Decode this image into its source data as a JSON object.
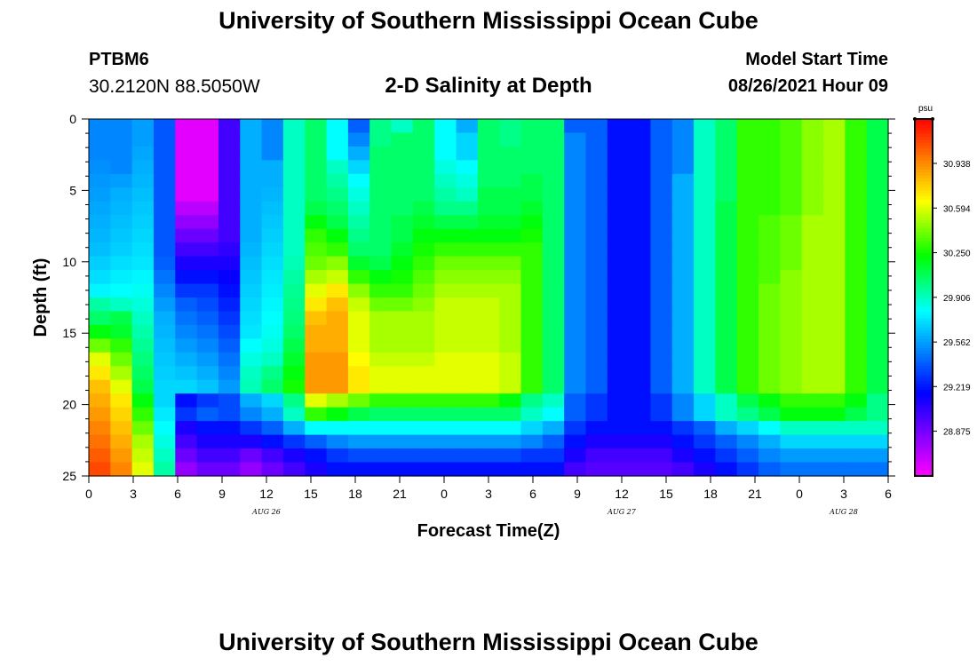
{
  "header": {
    "title_top": "University of Southern Mississippi Ocean Cube",
    "title_bottom": "University of Southern Mississippi Ocean Cube",
    "station_id": "PTBM6",
    "station_coords": "30.2120N  88.5050W",
    "plot_title": "2-D Salinity at Depth",
    "model_label": "Model Start Time",
    "model_time": "08/26/2021 Hour 09"
  },
  "colors": {
    "palette": [
      "#ff00ff",
      "#aa00ff",
      "#5500ff",
      "#0000ff",
      "#0055ff",
      "#00aaff",
      "#00ffff",
      "#00ff80",
      "#00ff00",
      "#80ff00",
      "#ffff00",
      "#ffaa00",
      "#ff5500",
      "#ff0000"
    ]
  },
  "chart_data": {
    "type": "heatmap",
    "title": "2-D Salinity at Depth",
    "xlabel": "Forecast Time(Z)",
    "ylabel": "Depth (ft)",
    "x_hours": [
      0,
      3,
      6,
      9,
      12,
      15,
      18,
      21,
      24,
      27,
      30,
      33,
      36,
      39,
      42,
      45,
      48,
      51,
      54
    ],
    "x_tick_labels": [
      "0",
      "3",
      "6",
      "9",
      "12",
      "15",
      "18",
      "21",
      "0",
      "3",
      "6",
      "9",
      "12",
      "15",
      "18",
      "21",
      "0",
      "3",
      "6"
    ],
    "xlim": [
      0,
      54
    ],
    "date_labels": [
      {
        "hour": 12,
        "text": "AUG 26"
      },
      {
        "hour": 36,
        "text": "AUG 27"
      },
      {
        "hour": 51,
        "text": "AUG 28"
      }
    ],
    "depths_ft": [
      0,
      5,
      10,
      15,
      20,
      25
    ],
    "y_tick_labels": [
      "0",
      "5",
      "10",
      "15",
      "20",
      "25"
    ],
    "ylim": [
      0,
      25
    ],
    "colorbar": {
      "unit": "psu",
      "ticks": [
        30.938,
        30.594,
        30.25,
        29.906,
        29.562,
        29.219,
        28.875
      ],
      "tick_labels": [
        "30.938",
        "30.594",
        "30.250",
        "29.906",
        "29.562",
        "29.219",
        "28.875"
      ],
      "range": [
        28.53,
        31.28
      ]
    },
    "values_psu": [
      [
        29.5,
        29.5,
        29.56,
        29.38,
        28.6,
        28.6,
        29.0,
        29.6,
        29.5,
        29.9,
        30.05,
        29.8,
        29.4,
        30.0,
        29.9,
        30.05,
        29.8,
        29.6,
        30.05,
        30.0,
        30.05,
        30.05,
        29.4,
        29.4,
        29.2,
        29.2,
        29.4,
        29.5,
        29.9,
        30.05,
        30.3,
        30.3,
        30.35,
        30.45,
        30.5,
        30.3,
        30.1
      ],
      [
        29.5,
        29.5,
        29.56,
        29.38,
        28.6,
        28.6,
        29.0,
        29.6,
        29.5,
        29.9,
        30.05,
        29.8,
        29.5,
        30.0,
        30.05,
        30.05,
        29.8,
        29.7,
        30.05,
        30.0,
        30.05,
        30.05,
        29.5,
        29.4,
        29.2,
        29.2,
        29.4,
        29.5,
        29.9,
        30.05,
        30.3,
        30.3,
        30.35,
        30.45,
        30.5,
        30.3,
        30.1
      ],
      [
        29.5,
        29.5,
        29.58,
        29.38,
        28.6,
        28.6,
        29.0,
        29.6,
        29.5,
        29.9,
        30.05,
        29.8,
        29.6,
        30.05,
        30.05,
        30.05,
        29.8,
        29.7,
        30.05,
        30.05,
        30.05,
        30.05,
        29.5,
        29.4,
        29.2,
        29.2,
        29.4,
        29.5,
        29.9,
        30.05,
        30.3,
        30.3,
        30.35,
        30.45,
        30.5,
        30.3,
        30.1
      ],
      [
        29.52,
        29.5,
        29.6,
        29.38,
        28.6,
        28.6,
        29.0,
        29.6,
        29.6,
        29.9,
        30.05,
        29.9,
        29.7,
        30.05,
        30.05,
        30.05,
        29.85,
        29.8,
        30.05,
        30.05,
        30.05,
        30.05,
        29.5,
        29.4,
        29.2,
        29.2,
        29.4,
        29.5,
        29.9,
        30.05,
        30.3,
        30.3,
        30.35,
        30.45,
        30.5,
        30.3,
        30.1
      ],
      [
        29.54,
        29.56,
        29.62,
        29.38,
        28.6,
        28.6,
        29.0,
        29.6,
        29.6,
        29.9,
        30.05,
        29.95,
        29.8,
        30.05,
        30.05,
        30.05,
        29.9,
        29.85,
        30.05,
        30.05,
        30.1,
        30.05,
        29.5,
        29.4,
        29.2,
        29.2,
        29.4,
        29.6,
        29.9,
        30.05,
        30.3,
        30.3,
        30.35,
        30.45,
        30.5,
        30.3,
        30.1
      ],
      [
        29.56,
        29.6,
        29.64,
        29.38,
        28.6,
        28.6,
        29.0,
        29.6,
        29.62,
        29.9,
        30.05,
        30.0,
        29.85,
        30.05,
        30.05,
        30.05,
        29.95,
        29.9,
        30.1,
        30.1,
        30.1,
        30.05,
        29.5,
        29.4,
        29.2,
        29.2,
        29.4,
        29.6,
        29.9,
        30.05,
        30.3,
        30.3,
        30.35,
        30.45,
        30.5,
        30.3,
        30.1
      ],
      [
        29.58,
        29.62,
        29.66,
        29.38,
        28.7,
        28.7,
        29.0,
        29.6,
        29.64,
        29.9,
        30.1,
        30.05,
        29.9,
        30.05,
        30.05,
        30.1,
        30.0,
        30.0,
        30.1,
        30.1,
        30.15,
        30.05,
        29.5,
        29.4,
        29.2,
        29.2,
        29.4,
        29.6,
        29.9,
        30.1,
        30.3,
        30.3,
        30.35,
        30.45,
        30.5,
        30.3,
        30.1
      ],
      [
        29.6,
        29.64,
        29.68,
        29.38,
        28.8,
        28.8,
        29.0,
        29.6,
        29.66,
        29.9,
        30.2,
        30.1,
        29.95,
        30.05,
        30.1,
        30.15,
        30.1,
        30.1,
        30.15,
        30.15,
        30.2,
        30.05,
        29.5,
        29.4,
        29.2,
        29.2,
        29.4,
        29.6,
        29.9,
        30.1,
        30.3,
        30.35,
        30.4,
        30.5,
        30.5,
        30.3,
        30.1
      ],
      [
        29.62,
        29.66,
        29.7,
        29.38,
        28.9,
        28.9,
        29.0,
        29.6,
        29.68,
        29.9,
        30.3,
        30.2,
        30.0,
        30.05,
        30.1,
        30.2,
        30.2,
        30.2,
        30.2,
        30.2,
        30.25,
        30.05,
        29.5,
        29.4,
        29.2,
        29.2,
        29.4,
        29.6,
        29.9,
        30.1,
        30.3,
        30.35,
        30.4,
        30.5,
        30.5,
        30.3,
        30.1
      ],
      [
        29.64,
        29.68,
        29.72,
        29.38,
        29.0,
        29.0,
        29.05,
        29.62,
        29.7,
        29.9,
        30.35,
        30.3,
        30.05,
        30.05,
        30.15,
        30.25,
        30.3,
        30.3,
        30.3,
        30.3,
        30.3,
        30.05,
        29.5,
        29.4,
        29.2,
        29.2,
        29.4,
        29.6,
        29.9,
        30.1,
        30.3,
        30.35,
        30.4,
        30.5,
        30.5,
        30.3,
        30.1
      ],
      [
        29.68,
        29.72,
        29.74,
        29.4,
        29.1,
        29.1,
        29.1,
        29.64,
        29.72,
        29.92,
        30.4,
        30.45,
        30.15,
        30.1,
        30.2,
        30.3,
        30.4,
        30.4,
        30.4,
        30.4,
        30.3,
        30.05,
        29.5,
        29.4,
        29.2,
        29.2,
        29.4,
        29.6,
        29.9,
        30.1,
        30.3,
        30.35,
        30.4,
        30.5,
        30.5,
        30.3,
        30.1
      ],
      [
        29.72,
        29.76,
        29.78,
        29.45,
        29.2,
        29.2,
        29.15,
        29.66,
        29.74,
        29.95,
        30.5,
        30.55,
        30.3,
        30.2,
        30.25,
        30.35,
        30.45,
        30.45,
        30.45,
        30.45,
        30.3,
        30.05,
        29.5,
        29.4,
        29.2,
        29.2,
        29.4,
        29.6,
        29.9,
        30.1,
        30.3,
        30.35,
        30.45,
        30.5,
        30.5,
        30.3,
        30.1
      ],
      [
        29.78,
        29.8,
        29.82,
        29.5,
        29.3,
        29.3,
        29.2,
        29.68,
        29.76,
        29.98,
        30.6,
        30.7,
        30.45,
        30.3,
        30.3,
        30.4,
        30.5,
        30.5,
        30.5,
        30.5,
        30.3,
        30.05,
        29.5,
        29.4,
        29.2,
        29.2,
        29.4,
        29.6,
        29.9,
        30.1,
        30.3,
        30.4,
        30.45,
        30.5,
        30.5,
        30.3,
        30.1
      ],
      [
        29.95,
        29.9,
        29.86,
        29.55,
        29.4,
        29.35,
        29.25,
        29.7,
        29.78,
        30.0,
        30.7,
        30.8,
        30.55,
        30.4,
        30.4,
        30.45,
        30.55,
        30.55,
        30.55,
        30.5,
        30.3,
        30.05,
        29.5,
        29.4,
        29.2,
        29.2,
        29.4,
        29.6,
        29.9,
        30.1,
        30.3,
        30.4,
        30.45,
        30.5,
        30.5,
        30.3,
        30.1
      ],
      [
        30.05,
        30.1,
        29.9,
        29.6,
        29.45,
        29.4,
        29.3,
        29.72,
        29.8,
        30.02,
        30.8,
        30.85,
        30.6,
        30.5,
        30.5,
        30.5,
        30.55,
        30.55,
        30.55,
        30.5,
        30.3,
        30.05,
        29.5,
        29.4,
        29.2,
        29.2,
        29.4,
        29.6,
        29.9,
        30.1,
        30.3,
        30.4,
        30.45,
        30.5,
        30.5,
        30.3,
        30.1
      ],
      [
        30.2,
        30.15,
        29.94,
        29.62,
        29.5,
        29.45,
        29.35,
        29.74,
        29.82,
        30.05,
        30.85,
        30.85,
        30.6,
        30.5,
        30.5,
        30.5,
        30.55,
        30.55,
        30.55,
        30.5,
        30.3,
        30.05,
        29.5,
        29.4,
        29.2,
        29.2,
        29.4,
        29.6,
        29.9,
        30.1,
        30.3,
        30.4,
        30.45,
        30.5,
        30.5,
        30.3,
        30.1
      ],
      [
        30.4,
        30.3,
        29.98,
        29.64,
        29.55,
        29.5,
        29.4,
        29.8,
        29.85,
        30.1,
        30.85,
        30.85,
        30.6,
        30.5,
        30.5,
        30.5,
        30.55,
        30.55,
        30.55,
        30.5,
        30.3,
        30.05,
        29.5,
        29.4,
        29.2,
        29.2,
        29.4,
        29.6,
        29.9,
        30.1,
        30.3,
        30.4,
        30.45,
        30.5,
        30.5,
        30.3,
        30.1
      ],
      [
        30.6,
        30.4,
        30.02,
        29.66,
        29.6,
        29.55,
        29.45,
        29.85,
        29.9,
        30.15,
        30.9,
        30.9,
        30.65,
        30.55,
        30.55,
        30.55,
        30.6,
        30.6,
        30.6,
        30.55,
        30.3,
        30.05,
        29.5,
        29.4,
        29.2,
        29.2,
        29.4,
        29.6,
        29.9,
        30.1,
        30.3,
        30.4,
        30.45,
        30.5,
        30.5,
        30.3,
        30.1
      ],
      [
        30.7,
        30.5,
        30.06,
        29.68,
        29.65,
        29.6,
        29.5,
        29.9,
        30.0,
        30.2,
        30.9,
        30.9,
        30.7,
        30.6,
        30.6,
        30.6,
        30.6,
        30.6,
        30.6,
        30.55,
        30.3,
        30.05,
        29.5,
        29.4,
        29.2,
        29.2,
        29.4,
        29.6,
        29.9,
        30.1,
        30.3,
        30.4,
        30.45,
        30.5,
        30.5,
        30.3,
        30.1
      ],
      [
        30.8,
        30.6,
        30.1,
        29.7,
        29.7,
        29.65,
        29.55,
        29.92,
        30.05,
        30.25,
        30.9,
        30.9,
        30.7,
        30.6,
        30.6,
        30.6,
        30.6,
        30.6,
        30.6,
        30.55,
        30.3,
        30.05,
        29.5,
        29.4,
        29.2,
        29.2,
        29.4,
        29.6,
        29.9,
        30.1,
        30.3,
        30.4,
        30.45,
        30.5,
        30.5,
        30.3,
        30.1
      ],
      [
        30.85,
        30.7,
        30.2,
        29.7,
        29.2,
        29.3,
        29.35,
        29.6,
        29.7,
        30.0,
        30.6,
        30.5,
        30.4,
        30.3,
        30.3,
        30.3,
        30.3,
        30.3,
        30.3,
        30.2,
        30.0,
        29.9,
        29.4,
        29.3,
        29.2,
        29.2,
        29.3,
        29.5,
        29.7,
        29.9,
        30.1,
        30.2,
        30.3,
        30.3,
        30.3,
        30.2,
        30.0
      ],
      [
        30.9,
        30.75,
        30.3,
        29.75,
        29.3,
        29.4,
        29.35,
        29.5,
        29.6,
        29.9,
        30.3,
        30.2,
        30.1,
        30.05,
        30.05,
        30.05,
        30.05,
        30.05,
        30.05,
        30.05,
        29.9,
        29.8,
        29.4,
        29.3,
        29.2,
        29.2,
        29.3,
        29.5,
        29.7,
        29.9,
        30.0,
        30.1,
        30.2,
        30.2,
        30.2,
        30.1,
        30.0
      ],
      [
        30.95,
        30.8,
        30.4,
        29.8,
        29.1,
        29.2,
        29.2,
        29.3,
        29.4,
        29.6,
        29.8,
        29.8,
        29.8,
        29.8,
        29.8,
        29.8,
        29.8,
        29.8,
        29.8,
        29.8,
        29.7,
        29.6,
        29.3,
        29.2,
        29.2,
        29.2,
        29.2,
        29.3,
        29.4,
        29.6,
        29.7,
        29.8,
        29.9,
        29.9,
        29.9,
        29.9,
        29.9
      ],
      [
        31.0,
        30.85,
        30.5,
        29.85,
        29.0,
        29.1,
        29.1,
        29.1,
        29.2,
        29.3,
        29.4,
        29.5,
        29.55,
        29.55,
        29.55,
        29.55,
        29.55,
        29.55,
        29.55,
        29.55,
        29.5,
        29.4,
        29.2,
        29.1,
        29.1,
        29.1,
        29.1,
        29.2,
        29.3,
        29.4,
        29.5,
        29.6,
        29.7,
        29.7,
        29.7,
        29.7,
        29.7
      ],
      [
        31.05,
        30.9,
        30.55,
        29.9,
        28.9,
        29.0,
        29.0,
        28.9,
        29.0,
        29.1,
        29.2,
        29.3,
        29.35,
        29.35,
        29.35,
        29.35,
        29.35,
        29.35,
        29.35,
        29.35,
        29.3,
        29.3,
        29.1,
        29.0,
        29.0,
        29.0,
        29.0,
        29.1,
        29.2,
        29.3,
        29.4,
        29.5,
        29.55,
        29.55,
        29.55,
        29.55,
        29.55
      ],
      [
        31.1,
        30.95,
        30.6,
        29.95,
        28.8,
        28.9,
        28.9,
        28.8,
        28.9,
        29.0,
        29.1,
        29.2,
        29.2,
        29.2,
        29.2,
        29.2,
        29.2,
        29.2,
        29.2,
        29.2,
        29.2,
        29.2,
        29.0,
        28.95,
        28.95,
        28.95,
        28.95,
        29.0,
        29.1,
        29.2,
        29.3,
        29.4,
        29.45,
        29.45,
        29.45,
        29.45,
        29.45
      ]
    ]
  }
}
